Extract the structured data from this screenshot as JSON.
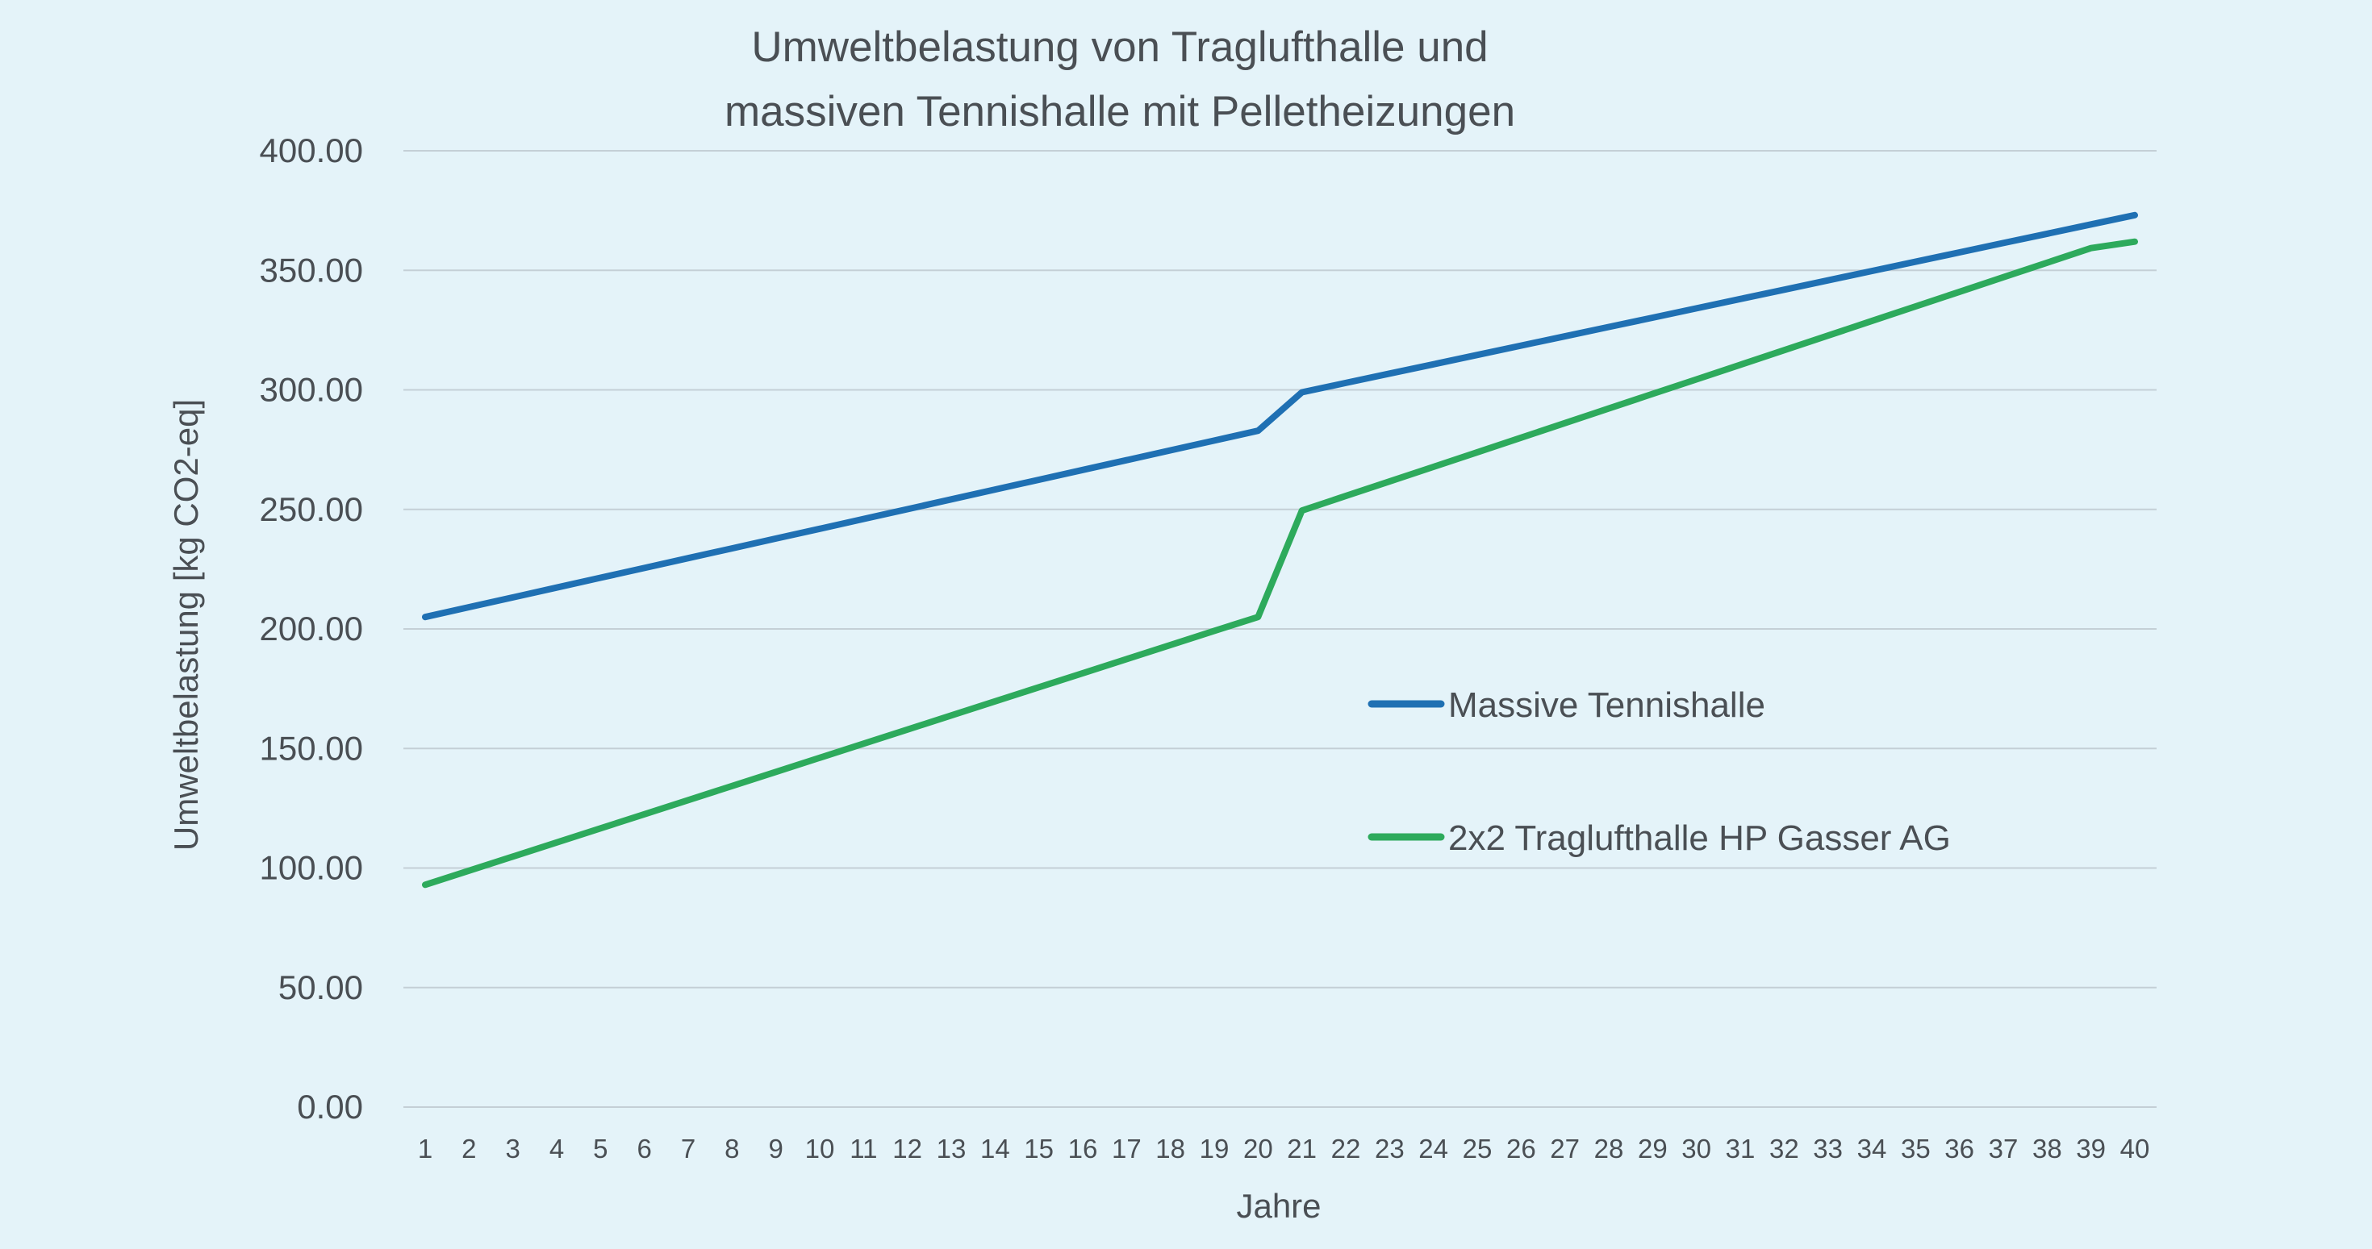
{
  "chart_data": {
    "type": "line",
    "title_lines": [
      "Umweltbelastung von Traglufthalle und",
      "massiven Tennishalle mit Pelletheizungen"
    ],
    "xlabel": "Jahre",
    "ylabel": "Umweltbelastung [kg CO2-eq]",
    "ylim": [
      0,
      400
    ],
    "yticks": [
      "0.00",
      "50.00",
      "100.00",
      "150.00",
      "200.00",
      "250.00",
      "300.00",
      "350.00",
      "400.00"
    ],
    "categories": [
      "1",
      "2",
      "3",
      "4",
      "5",
      "6",
      "7",
      "8",
      "9",
      "10",
      "11",
      "12",
      "13",
      "14",
      "15",
      "16",
      "17",
      "18",
      "19",
      "20",
      "21",
      "22",
      "23",
      "24",
      "25",
      "26",
      "27",
      "28",
      "29",
      "30",
      "31",
      "32",
      "33",
      "34",
      "35",
      "36",
      "37",
      "38",
      "39",
      "40"
    ],
    "grid": true,
    "legend_position": "right-center",
    "series": [
      {
        "name": "Massive Tennishalle",
        "color": "#1f70b3",
        "values": [
          205,
          209.1,
          213.2,
          217.3,
          221.4,
          225.5,
          229.6,
          233.7,
          237.8,
          241.9,
          246,
          250.1,
          254.2,
          258.3,
          262.4,
          266.5,
          270.6,
          274.7,
          278.8,
          282.9,
          299,
          302.9,
          306.8,
          310.7,
          314.6,
          318.5,
          322.4,
          326.3,
          330.2,
          334.1,
          338,
          341.9,
          345.8,
          349.7,
          353.6,
          357.5,
          361.4,
          365.3,
          369.2,
          373.1
        ]
      },
      {
        "name": "2x2 Traglufthalle HP Gasser AG",
        "color": "#2daa5c",
        "values": [
          93,
          98.9,
          104.8,
          110.7,
          116.6,
          122.5,
          128.4,
          134.3,
          140.2,
          146.1,
          152,
          157.9,
          163.8,
          169.7,
          175.6,
          181.5,
          187.4,
          193.3,
          199.2,
          205,
          249.5,
          255.6,
          261.7,
          267.8,
          273.9,
          280,
          286.1,
          292.2,
          298.3,
          304.4,
          310.5,
          316.6,
          322.7,
          328.8,
          334.9,
          341,
          347.1,
          353.2,
          359.3,
          362
        ]
      }
    ]
  }
}
